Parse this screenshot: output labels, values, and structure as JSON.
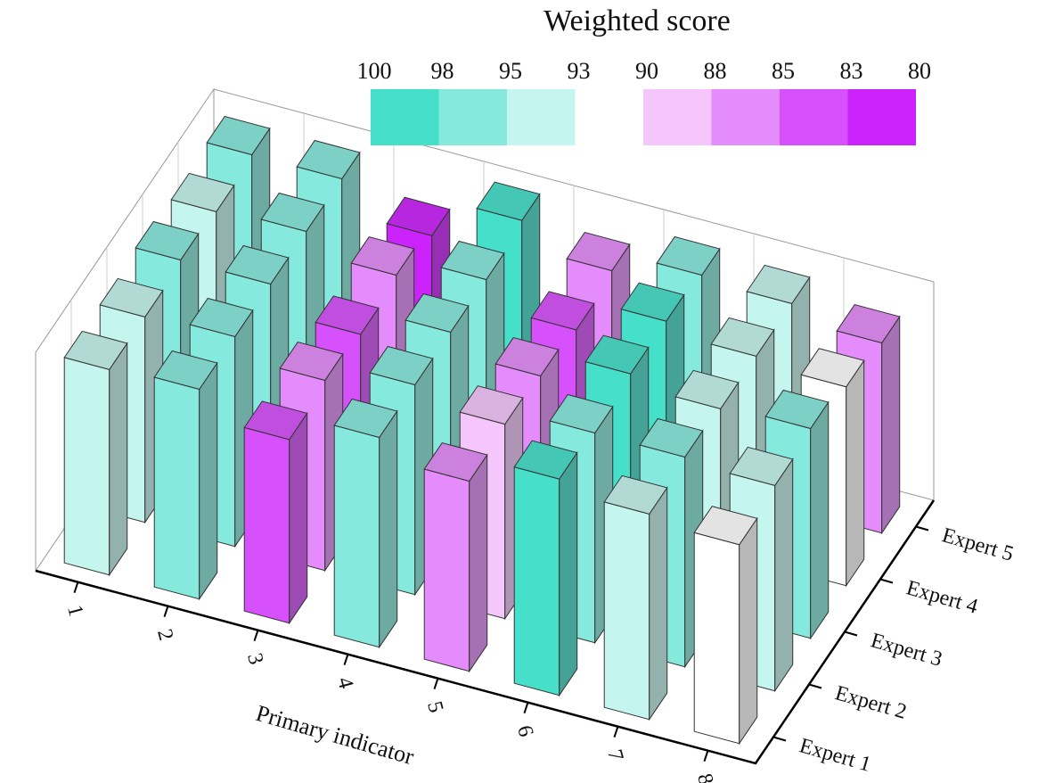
{
  "chart_data": {
    "type": "bar3d",
    "title": "Weighted score",
    "x_label": "Primary indicator",
    "categories": [
      "1",
      "2",
      "3",
      "4",
      "5",
      "6",
      "7",
      "8"
    ],
    "series": [
      {
        "name": "Expert 1",
        "values": [
          94,
          96,
          84,
          96,
          87,
          99,
          94,
          91
        ]
      },
      {
        "name": "Expert 2",
        "values": [
          94,
          96,
          87,
          96,
          89,
          96,
          96,
          94
        ]
      },
      {
        "name": "Expert 3",
        "values": [
          96,
          96,
          84,
          96,
          87,
          99,
          94,
          96
        ]
      },
      {
        "name": "Expert 4",
        "values": [
          94,
          96,
          87,
          96,
          84,
          99,
          94,
          91
        ]
      },
      {
        "name": "Expert 5",
        "values": [
          96,
          96,
          81,
          99,
          87,
          96,
          94,
          87
        ]
      }
    ],
    "zlim": [
      0,
      100
    ],
    "colorscale": {
      "ticks": [
        100,
        98,
        95,
        93,
        90,
        88,
        85,
        83,
        80
      ],
      "colors": [
        "#45dfca",
        "#86e9dd",
        "#c4f5ee",
        "#ffffff",
        "#f4c6fc",
        "#e48cfb",
        "#d650fb",
        "#cc22fb"
      ]
    }
  }
}
